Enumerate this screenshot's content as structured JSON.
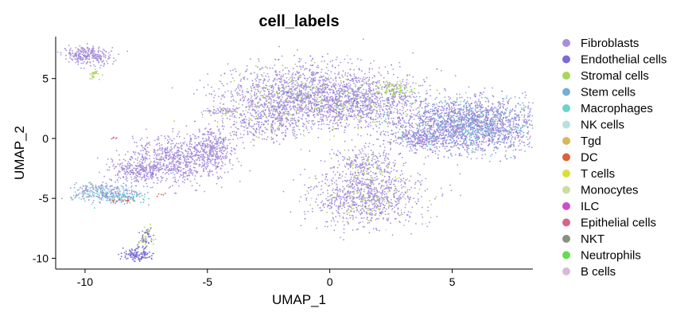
{
  "chart_data": {
    "type": "scatter",
    "title": "cell_labels",
    "xlabel": "UMAP_1",
    "ylabel": "UMAP_2",
    "xlim": [
      -11.2,
      8.3
    ],
    "ylim": [
      -10.9,
      8.5
    ],
    "xticks": [
      -10,
      -5,
      0,
      5
    ],
    "yticks": [
      -10,
      -5,
      0,
      5
    ],
    "xtick_labels": [
      "-10",
      "-5",
      "0",
      "5"
    ],
    "ytick_labels": [
      "-10",
      "-5",
      "0",
      "5"
    ],
    "grid": false,
    "legend_position": "right",
    "series": [
      {
        "name": "Fibroblasts",
        "color": "#a890d9"
      },
      {
        "name": "Endothelial cells",
        "color": "#7a6bd6"
      },
      {
        "name": "Stromal cells",
        "color": "#a8d65a"
      },
      {
        "name": "Stem cells",
        "color": "#78aed6"
      },
      {
        "name": "Macrophages",
        "color": "#6ad4cc"
      },
      {
        "name": "NK cells",
        "color": "#b8e0e0"
      },
      {
        "name": "Tgd",
        "color": "#d8b85a"
      },
      {
        "name": "DC",
        "color": "#e0603c"
      },
      {
        "name": "T cells",
        "color": "#d8e03a"
      },
      {
        "name": "Monocytes",
        "color": "#d0dc9c"
      },
      {
        "name": "ILC",
        "color": "#cc4cd0"
      },
      {
        "name": "Epithelial cells",
        "color": "#d8648a"
      },
      {
        "name": "NKT",
        "color": "#8a9080"
      },
      {
        "name": "Neutrophils",
        "color": "#64dc50"
      },
      {
        "name": "B cells",
        "color": "#dcb8d8"
      }
    ],
    "clusters": [
      {
        "cx": -9.9,
        "cy": 6.9,
        "sx": 0.5,
        "sy": 0.4,
        "n": 260,
        "mix": [
          [
            0,
            0.9
          ],
          [
            1,
            0.1
          ]
        ]
      },
      {
        "cx": -9.6,
        "cy": 5.4,
        "sx": 0.12,
        "sy": 0.2,
        "n": 25,
        "mix": [
          [
            2,
            1.0
          ]
        ]
      },
      {
        "cx": -6.2,
        "cy": -1.8,
        "sx": 1.0,
        "sy": 1.0,
        "n": 700,
        "mix": [
          [
            0,
            0.94
          ],
          [
            1,
            0.04
          ],
          [
            3,
            0.02
          ]
        ]
      },
      {
        "cx": -4.8,
        "cy": -0.8,
        "sx": 0.5,
        "sy": 0.9,
        "n": 300,
        "mix": [
          [
            0,
            0.95
          ],
          [
            1,
            0.05
          ]
        ]
      },
      {
        "cx": -7.8,
        "cy": -2.6,
        "sx": 0.6,
        "sy": 0.5,
        "n": 250,
        "mix": [
          [
            0,
            0.95
          ],
          [
            1,
            0.05
          ]
        ]
      },
      {
        "cx": -4.6,
        "cy": 2.3,
        "sx": 0.4,
        "sy": 0.15,
        "n": 60,
        "mix": [
          [
            0,
            0.7
          ],
          [
            2,
            0.3
          ]
        ]
      },
      {
        "cx": -9.3,
        "cy": -4.5,
        "sx": 0.65,
        "sy": 0.4,
        "n": 320,
        "mix": [
          [
            0,
            0.45
          ],
          [
            4,
            0.25
          ],
          [
            3,
            0.18
          ],
          [
            5,
            0.12
          ]
        ]
      },
      {
        "cx": -8.4,
        "cy": -4.9,
        "sx": 0.45,
        "sy": 0.25,
        "n": 100,
        "mix": [
          [
            4,
            0.5
          ],
          [
            3,
            0.3
          ],
          [
            0,
            0.2
          ]
        ]
      },
      {
        "cx": -7.5,
        "cy": -8.3,
        "sx": 0.15,
        "sy": 0.5,
        "n": 70,
        "mix": [
          [
            1,
            0.45
          ],
          [
            12,
            0.3
          ],
          [
            2,
            0.25
          ]
        ]
      },
      {
        "cx": -7.9,
        "cy": -9.7,
        "sx": 0.3,
        "sy": 0.25,
        "n": 120,
        "mix": [
          [
            1,
            1.0
          ]
        ]
      },
      {
        "cx": -1.0,
        "cy": 3.6,
        "sx": 1.6,
        "sy": 1.3,
        "n": 1700,
        "mix": [
          [
            0,
            0.78
          ],
          [
            1,
            0.07
          ],
          [
            2,
            0.08
          ],
          [
            3,
            0.05
          ],
          [
            9,
            0.02
          ]
        ]
      },
      {
        "cx": 1.6,
        "cy": 2.9,
        "sx": 1.2,
        "sy": 1.2,
        "n": 700,
        "mix": [
          [
            0,
            0.75
          ],
          [
            2,
            0.12
          ],
          [
            1,
            0.08
          ],
          [
            3,
            0.05
          ]
        ]
      },
      {
        "cx": 2.7,
        "cy": 4.1,
        "sx": 0.4,
        "sy": 0.3,
        "n": 80,
        "mix": [
          [
            2,
            0.7
          ],
          [
            0,
            0.3
          ]
        ]
      },
      {
        "cx": -2.6,
        "cy": 1.3,
        "sx": 0.8,
        "sy": 0.8,
        "n": 300,
        "mix": [
          [
            0,
            0.85
          ],
          [
            2,
            0.1
          ],
          [
            1,
            0.05
          ]
        ]
      },
      {
        "cx": 5.8,
        "cy": 1.1,
        "sx": 1.4,
        "sy": 1.1,
        "n": 2000,
        "mix": [
          [
            0,
            0.55
          ],
          [
            3,
            0.28
          ],
          [
            1,
            0.12
          ],
          [
            4,
            0.05
          ]
        ]
      },
      {
        "cx": 3.6,
        "cy": 0.0,
        "sx": 0.7,
        "sy": 0.45,
        "n": 280,
        "mix": [
          [
            0,
            0.7
          ],
          [
            3,
            0.15
          ],
          [
            1,
            0.15
          ]
        ]
      },
      {
        "cx": 1.5,
        "cy": -4.8,
        "sx": 1.1,
        "sy": 1.3,
        "n": 1000,
        "mix": [
          [
            0,
            0.8
          ],
          [
            2,
            0.12
          ],
          [
            1,
            0.05
          ],
          [
            9,
            0.03
          ]
        ]
      },
      {
        "cx": 1.4,
        "cy": -2.0,
        "sx": 0.7,
        "sy": 0.6,
        "n": 200,
        "mix": [
          [
            0,
            0.85
          ],
          [
            2,
            0.15
          ]
        ]
      },
      {
        "cx": -8.8,
        "cy": 0.0,
        "sx": 0.06,
        "sy": 0.05,
        "n": 6,
        "mix": [
          [
            11,
            1.0
          ]
        ]
      },
      {
        "cx": -8.5,
        "cy": -5.2,
        "sx": 0.2,
        "sy": 0.05,
        "n": 14,
        "mix": [
          [
            7,
            0.5
          ],
          [
            11,
            0.5
          ]
        ]
      },
      {
        "cx": -6.9,
        "cy": -4.7,
        "sx": 0.1,
        "sy": 0.1,
        "n": 5,
        "mix": [
          [
            7,
            1.0
          ]
        ]
      }
    ]
  }
}
